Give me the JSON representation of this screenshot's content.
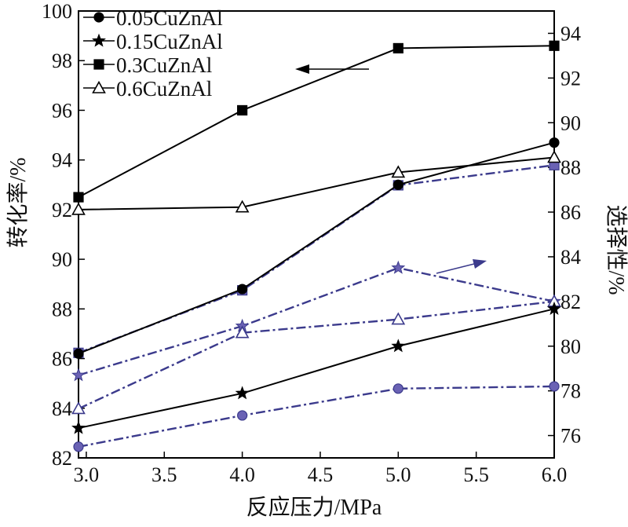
{
  "chart_data": {
    "type": "line",
    "xlabel": "反应压力/MPa",
    "ylabel_left": "转化率/%",
    "ylabel_right": "选择性/%",
    "xlim": [
      2.95,
      6.0
    ],
    "ylim_left": [
      82,
      100
    ],
    "ylim_right": [
      75,
      95
    ],
    "x_ticks": [
      "3.0",
      "3.5",
      "4.0",
      "4.5",
      "5.0",
      "5.5",
      "6.0"
    ],
    "y_left_ticks": [
      "82",
      "84",
      "86",
      "88",
      "90",
      "92",
      "94",
      "96",
      "98",
      "100"
    ],
    "y_right_ticks": [
      "76",
      "78",
      "80",
      "82",
      "84",
      "86",
      "88",
      "90",
      "92",
      "94"
    ],
    "grid": false,
    "legend_position": "top-left",
    "legend": [
      "0.05CuZnAl",
      "0.15CuZnAl",
      "0.3CuZnAl",
      "0.6CuZnAl"
    ],
    "x": [
      2.95,
      4.0,
      5.0,
      6.0
    ],
    "conversion_series": [
      {
        "name": "0.05CuZnAl",
        "marker": "circle",
        "values": [
          86.2,
          88.8,
          93.0,
          94.7
        ]
      },
      {
        "name": "0.15CuZnAl",
        "marker": "star",
        "values": [
          83.2,
          84.6,
          86.5,
          88.0
        ]
      },
      {
        "name": "0.3CuZnAl",
        "marker": "square",
        "values": [
          92.5,
          96.0,
          98.5,
          98.6
        ]
      },
      {
        "name": "0.6CuZnAl",
        "marker": "triangle",
        "values": [
          92.0,
          92.1,
          93.5,
          94.1
        ]
      }
    ],
    "selectivity_series": [
      {
        "name": "0.05CuZnAl",
        "marker": "circle",
        "values": [
          75.5,
          76.9,
          78.1,
          78.2
        ]
      },
      {
        "name": "0.15CuZnAl",
        "marker": "star",
        "values": [
          78.7,
          80.9,
          83.5,
          82.0
        ]
      },
      {
        "name": "0.3CuZnAl",
        "marker": "square",
        "values": [
          79.7,
          82.5,
          87.2,
          88.1
        ]
      },
      {
        "name": "0.6CuZnAl",
        "marker": "triangle",
        "values": [
          77.2,
          80.6,
          81.2,
          82.0
        ]
      }
    ],
    "colors": {
      "conversion": "#000000",
      "selectivity": "#3b3a8c",
      "selectivity_marker_fill": "#6a62b4"
    }
  }
}
